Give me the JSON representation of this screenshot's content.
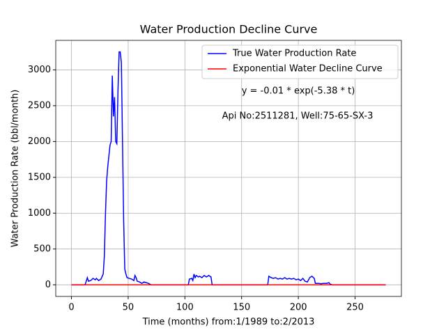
{
  "chart_data": {
    "type": "line",
    "title": "Water Production Decline Curve",
    "x_label": "Time (months) from:1/1989 to:2/2013",
    "y_label": "Water Production Rate (bbl/month)",
    "annotations": [
      "y = -0.01 * exp(-5.38 * t)",
      "Api No:2511281, Well:75-65-SX-3"
    ],
    "legend": "upper right",
    "grid": true,
    "xlim": [
      -13.85,
      290.85
    ],
    "ylim": [
      -162,
      3412
    ],
    "xticks": [
      0,
      50,
      100,
      150,
      200,
      250
    ],
    "yticks": [
      0,
      500,
      1000,
      1500,
      2000,
      2500,
      3000
    ],
    "series": [
      {
        "name": "True Water Production Rate",
        "color": "#0000ff",
        "x": [
          0,
          12,
          14,
          15,
          17,
          19,
          21,
          22,
          24,
          26,
          28,
          29,
          30,
          31,
          32,
          33,
          34,
          35,
          36,
          37,
          38,
          39,
          40,
          41,
          42,
          43,
          44,
          45,
          46,
          47,
          48,
          49,
          51,
          53,
          55,
          56,
          57,
          58,
          60,
          62,
          64,
          66,
          68,
          70,
          103,
          104,
          106,
          107,
          108,
          109,
          110,
          112,
          113,
          115,
          117,
          119,
          121,
          123,
          124,
          173,
          174,
          176,
          178,
          180,
          182,
          184,
          186,
          188,
          190,
          192,
          194,
          196,
          198,
          200,
          202,
          204,
          206,
          208,
          210,
          212,
          214,
          215,
          218,
          220,
          222,
          225,
          227,
          228,
          230,
          277
        ],
        "values": [
          0,
          0,
          100,
          50,
          60,
          90,
          70,
          90,
          60,
          80,
          150,
          400,
          1000,
          1450,
          1650,
          1800,
          1950,
          2000,
          2920,
          2350,
          2620,
          2000,
          1970,
          2700,
          3250,
          3250,
          3100,
          2000,
          900,
          220,
          150,
          100,
          90,
          80,
          60,
          130,
          100,
          50,
          40,
          20,
          40,
          30,
          20,
          0,
          0,
          80,
          90,
          60,
          150,
          100,
          130,
          110,
          120,
          100,
          130,
          110,
          130,
          110,
          0,
          0,
          120,
          100,
          90,
          100,
          80,
          90,
          80,
          100,
          80,
          90,
          80,
          90,
          70,
          80,
          60,
          90,
          50,
          40,
          100,
          120,
          90,
          20,
          20,
          15,
          20,
          20,
          30,
          10,
          0,
          0
        ]
      },
      {
        "name": "Exponential Water Decline Curve",
        "color": "#ff0000",
        "x": [
          0,
          277
        ],
        "values": [
          0,
          0
        ]
      }
    ]
  }
}
